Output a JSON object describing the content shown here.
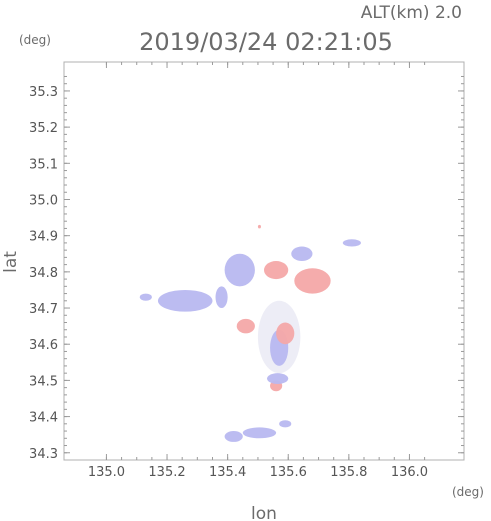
{
  "chart_data": {
    "type": "heatmap",
    "title": "2019/03/24 02:21:05",
    "altitude_label": "ALT(km) 2.0",
    "xlabel": "lon",
    "ylabel": "lat",
    "x_unit": "(deg)",
    "y_unit": "(deg)",
    "xlim": [
      134.86,
      136.18
    ],
    "ylim": [
      34.28,
      35.38
    ],
    "x_ticks": [
      "135.0",
      "135.2",
      "135.4",
      "135.6",
      "135.8",
      "136.0"
    ],
    "y_ticks": [
      "34.3",
      "34.4",
      "34.5",
      "34.6",
      "34.7",
      "34.8",
      "34.9",
      "35.0",
      "35.1",
      "35.2",
      "35.3"
    ],
    "grid": false,
    "colors": {
      "negative": "#b8b8f0",
      "positive": "#f4a8a8",
      "neutral": "#e8e8f4"
    },
    "regions": [
      {
        "sign": "negative",
        "lon": [
          135.39,
          135.49
        ],
        "lat": [
          34.76,
          34.85
        ]
      },
      {
        "sign": "negative",
        "lon": [
          135.17,
          135.35
        ],
        "lat": [
          34.69,
          34.75
        ]
      },
      {
        "sign": "negative",
        "lon": [
          135.11,
          135.15
        ],
        "lat": [
          34.72,
          34.74
        ]
      },
      {
        "sign": "negative",
        "lon": [
          135.36,
          135.4
        ],
        "lat": [
          34.7,
          34.76
        ]
      },
      {
        "sign": "positive",
        "lon": [
          135.52,
          135.6
        ],
        "lat": [
          34.78,
          34.83
        ]
      },
      {
        "sign": "positive",
        "lon": [
          135.62,
          135.74
        ],
        "lat": [
          34.74,
          34.81
        ]
      },
      {
        "sign": "negative",
        "lon": [
          135.61,
          135.68
        ],
        "lat": [
          34.83,
          34.87
        ]
      },
      {
        "sign": "negative",
        "lon": [
          135.78,
          135.84
        ],
        "lat": [
          34.87,
          34.89
        ]
      },
      {
        "sign": "positive",
        "lon": [
          135.5,
          135.51
        ],
        "lat": [
          34.92,
          34.93
        ]
      },
      {
        "sign": "neutral",
        "lon": [
          135.5,
          135.64
        ],
        "lat": [
          34.52,
          34.72
        ]
      },
      {
        "sign": "negative",
        "lon": [
          135.54,
          135.6
        ],
        "lat": [
          34.54,
          34.64
        ]
      },
      {
        "sign": "positive",
        "lon": [
          135.56,
          135.62
        ],
        "lat": [
          34.6,
          34.66
        ]
      },
      {
        "sign": "positive",
        "lon": [
          135.43,
          135.49
        ],
        "lat": [
          34.63,
          34.67
        ]
      },
      {
        "sign": "positive",
        "lon": [
          135.54,
          135.58
        ],
        "lat": [
          34.47,
          34.5
        ]
      },
      {
        "sign": "negative",
        "lon": [
          135.53,
          135.6
        ],
        "lat": [
          34.49,
          34.52
        ]
      },
      {
        "sign": "negative",
        "lon": [
          135.39,
          135.45
        ],
        "lat": [
          34.33,
          34.36
        ]
      },
      {
        "sign": "negative",
        "lon": [
          135.45,
          135.56
        ],
        "lat": [
          34.34,
          34.37
        ]
      },
      {
        "sign": "negative",
        "lon": [
          135.57,
          135.61
        ],
        "lat": [
          34.37,
          34.39
        ]
      }
    ]
  }
}
